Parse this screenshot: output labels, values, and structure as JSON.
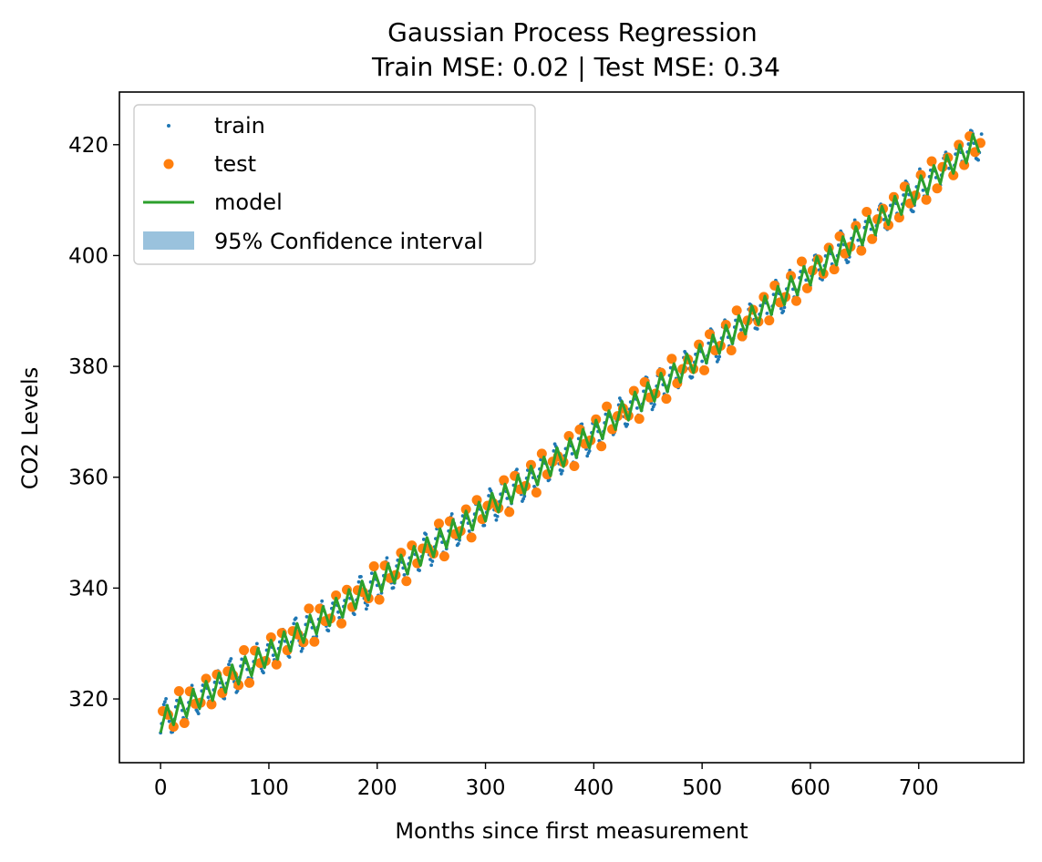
{
  "chart_data": {
    "type": "line",
    "title": "Gaussian Process Regression",
    "subtitle": "Train MSE: 0.02 | Test MSE: 0.34",
    "xlabel": "Months since first measurement",
    "ylabel": "CO2 Levels",
    "xlim": [
      -38,
      797
    ],
    "ylim": [
      308.5,
      429.5
    ],
    "xticks": [
      0,
      100,
      200,
      300,
      400,
      500,
      600,
      700
    ],
    "yticks": [
      320,
      340,
      360,
      380,
      400,
      420
    ],
    "grid": false,
    "legend_position": "upper-left",
    "trend": {
      "description": "monthly CO2 with seasonal cycle",
      "x_start": 0,
      "x_end": 758,
      "base_start": 316.0,
      "base_end": 421.0,
      "curvature": 14.0,
      "season_amplitude": 3.0
    },
    "series": [
      {
        "name": "train",
        "type": "scatter",
        "color": "#1f77b4",
        "marker": "point"
      },
      {
        "name": "test",
        "type": "scatter",
        "color": "#ff7f0e",
        "marker": "circle"
      },
      {
        "name": "model",
        "type": "line",
        "color": "#2ca02c"
      },
      {
        "name": "95% Confidence interval",
        "type": "area",
        "color": "#1f77b4",
        "opacity": 0.45
      }
    ]
  }
}
